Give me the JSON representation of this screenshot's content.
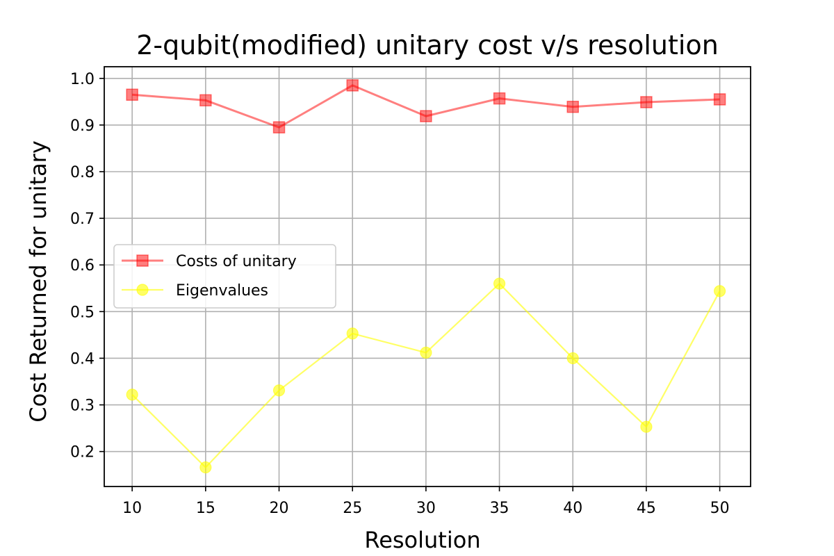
{
  "chart_data": {
    "type": "line",
    "title": "2-qubit(modified) unitary cost v/s resolution",
    "xlabel": "Resolution",
    "ylabel": "Cost Returned for unitary",
    "x": [
      10,
      15,
      20,
      25,
      30,
      35,
      40,
      45,
      50
    ],
    "xticks": [
      "10",
      "15",
      "20",
      "25",
      "30",
      "35",
      "40",
      "45",
      "50"
    ],
    "yticks": [
      "0.2",
      "0.3",
      "0.4",
      "0.5",
      "0.6",
      "0.7",
      "0.8",
      "0.9",
      "1.0"
    ],
    "xlim": [
      8.1,
      52.1
    ],
    "ylim": [
      0.125,
      1.025
    ],
    "grid": true,
    "legend_position": "center-left",
    "series": [
      {
        "name": "Costs of unitary",
        "marker": "square",
        "color": "#ff0000",
        "values": [
          0.965,
          0.953,
          0.895,
          0.985,
          0.919,
          0.957,
          0.939,
          0.949,
          0.955
        ]
      },
      {
        "name": "Eigenvalues",
        "marker": "circle",
        "color": "#ffff00",
        "values": [
          0.322,
          0.166,
          0.331,
          0.453,
          0.412,
          0.56,
          0.4,
          0.253,
          0.544
        ]
      }
    ]
  }
}
